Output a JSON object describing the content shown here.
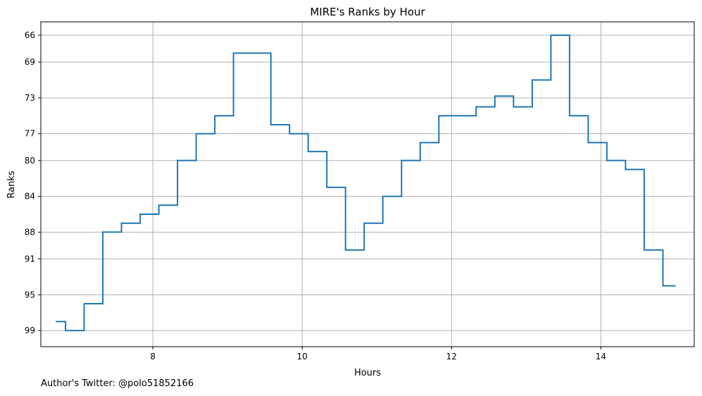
{
  "chart_data": {
    "type": "line",
    "drawstyle": "steps-post",
    "title": "MIRE's Ranks by Hour",
    "xlabel": "Hours",
    "ylabel": "Ranks",
    "xlim": [
      6.5,
      15.25
    ],
    "ylim": [
      100.8,
      64.5
    ],
    "y_inverted": true,
    "xticks": [
      8,
      10,
      12,
      14
    ],
    "yticks": [
      66,
      69,
      73,
      77,
      80,
      84,
      88,
      91,
      95,
      99
    ],
    "grid": true,
    "series": [
      {
        "color": "#1f77b4",
        "x": [
          6.7,
          6.83,
          7.08,
          7.33,
          7.58,
          7.83,
          8.08,
          8.33,
          8.58,
          8.83,
          9.08,
          9.33,
          9.58,
          9.83,
          10.08,
          10.33,
          10.58,
          10.83,
          11.08,
          11.33,
          11.58,
          11.83,
          12.08,
          12.33,
          12.58,
          12.83,
          13.08,
          13.33,
          13.58,
          13.83,
          14.08,
          14.33,
          14.58,
          14.83,
          15.0
        ],
        "y": [
          98,
          99,
          96,
          88,
          87,
          86,
          85,
          80,
          77,
          75,
          68,
          68,
          76,
          77,
          79,
          83,
          90,
          87,
          84,
          80,
          78,
          75,
          75,
          74,
          72.8,
          74,
          71,
          66,
          75,
          78,
          80,
          81,
          90,
          94,
          94
        ]
      }
    ]
  },
  "footer": {
    "author": "Author's Twitter: @polo51852166"
  }
}
